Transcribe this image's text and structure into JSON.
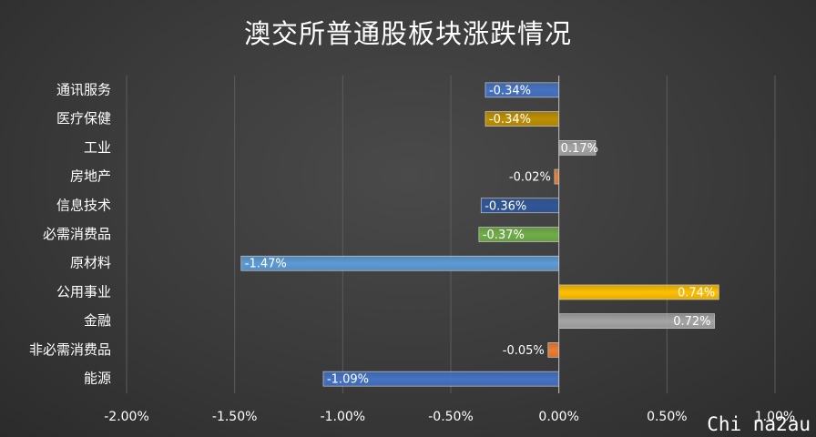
{
  "chart_data": {
    "type": "bar",
    "orientation": "horizontal",
    "title": "澳交所普通股板块涨跌情况",
    "categories": [
      "通讯服务",
      "医疗保健",
      "工业",
      "房地产",
      "信息技术",
      "必需消费品",
      "原材料",
      "公用事业",
      "金融",
      "非必需消费品",
      "能源"
    ],
    "values": [
      -0.34,
      -0.34,
      0.17,
      -0.02,
      -0.36,
      -0.37,
      -1.47,
      0.74,
      0.72,
      -0.05,
      -1.09
    ],
    "data_labels": [
      "-0.34%",
      "-0.34%",
      "0.17%",
      "-0.02%",
      "-0.36%",
      "-0.37%",
      "-1.47%",
      "0.74%",
      "0.72%",
      "-0.05%",
      "-1.09%"
    ],
    "colors": [
      "#4472c4",
      "#bf8f00",
      "#a5a5a5",
      "#ed7d31",
      "#2f5597",
      "#70ad47",
      "#5b9bd5",
      "#ffc000",
      "#a5a5a5",
      "#ed7d31",
      "#4472c4"
    ],
    "xlim": [
      -2.0,
      1.0
    ],
    "xticks": [
      -2.0,
      -1.5,
      -1.0,
      -0.5,
      0.0,
      0.5,
      1.0
    ],
    "xtick_labels": [
      "-2.00%",
      "-1.50%",
      "-1.00%",
      "-0.50%",
      "0.00%",
      "0.50%",
      "1.00%"
    ],
    "grid": true,
    "legend": "none"
  },
  "watermark": "Chi na2au"
}
